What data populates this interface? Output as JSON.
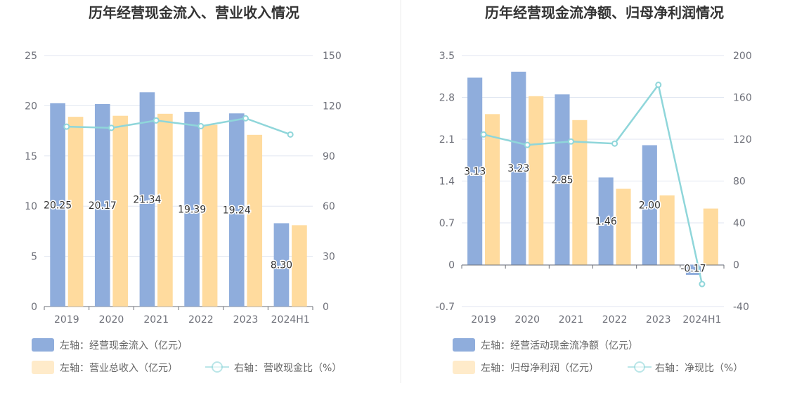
{
  "colors": {
    "bar_primary": "#8FADDC",
    "bar_secondary": "#FFDB9E",
    "line": "#8FD6DA",
    "grid": "#E0E6F1",
    "axis": "#6E7079",
    "divider": "#EEEEEE"
  },
  "chart_data": [
    {
      "type": "bar",
      "title": "历年经营现金流入、营业收入情况",
      "categories": [
        "2019",
        "2020",
        "2021",
        "2022",
        "2023",
        "2024H1"
      ],
      "left_axis": {
        "ticks": [
          "0",
          "5",
          "10",
          "15",
          "20",
          "25"
        ],
        "ylim": [
          0,
          25
        ]
      },
      "right_axis": {
        "ticks": [
          "0",
          "30",
          "60",
          "90",
          "120",
          "150"
        ],
        "ylim": [
          0,
          150
        ]
      },
      "series": [
        {
          "name": "左轴：经营现金流入（亿元）",
          "axis": "left",
          "type": "bar",
          "color": "#8FADDC",
          "values": [
            20.25,
            20.17,
            21.34,
            19.39,
            19.24,
            8.3
          ],
          "labels": [
            "20.25",
            "20.17",
            "21.34",
            "19.39",
            "19.24",
            "8.30"
          ]
        },
        {
          "name": "左轴：营业总收入（亿元）",
          "axis": "left",
          "type": "bar",
          "color": "#FFDB9E",
          "values": [
            18.9,
            19.0,
            19.2,
            18.1,
            17.1,
            8.1
          ]
        },
        {
          "name": "右轴：营收现金比（%）",
          "axis": "right",
          "type": "line",
          "color": "#8FD6DA",
          "values": [
            107.5,
            106.8,
            111.2,
            107.8,
            112.5,
            102.8
          ]
        }
      ],
      "legend_position": "bottom-left",
      "grid": true
    },
    {
      "type": "bar",
      "title": "历年经营现金流净额、归母净利润情况",
      "categories": [
        "2019",
        "2020",
        "2021",
        "2022",
        "2023",
        "2024H1"
      ],
      "left_axis": {
        "ticks": [
          "-0.7",
          "0",
          "0.7",
          "1.4",
          "2.1",
          "2.8",
          "3.5"
        ],
        "ylim": [
          -0.7,
          3.5
        ]
      },
      "right_axis": {
        "ticks": [
          "-40",
          "0",
          "40",
          "80",
          "120",
          "160",
          "200"
        ],
        "ylim": [
          -40,
          200
        ]
      },
      "series": [
        {
          "name": "左轴：经营活动现金流净额（亿元）",
          "axis": "left",
          "type": "bar",
          "color": "#8FADDC",
          "values": [
            3.13,
            3.23,
            2.85,
            1.46,
            2.0,
            -0.17
          ],
          "labels": [
            "3.13",
            "3.23",
            "2.85",
            "1.46",
            "2.00",
            "-0.17"
          ]
        },
        {
          "name": "左轴：归母净利润（亿元）",
          "axis": "left",
          "type": "bar",
          "color": "#FFDB9E",
          "values": [
            2.52,
            2.82,
            2.42,
            1.27,
            1.16,
            0.94
          ]
        },
        {
          "name": "右轴：净现比（%）",
          "axis": "right",
          "type": "line",
          "color": "#8FD6DA",
          "values": [
            124.5,
            114.5,
            117.8,
            115.8,
            172.0,
            -18.5
          ]
        }
      ],
      "legend_position": "bottom-left",
      "grid": true
    }
  ]
}
